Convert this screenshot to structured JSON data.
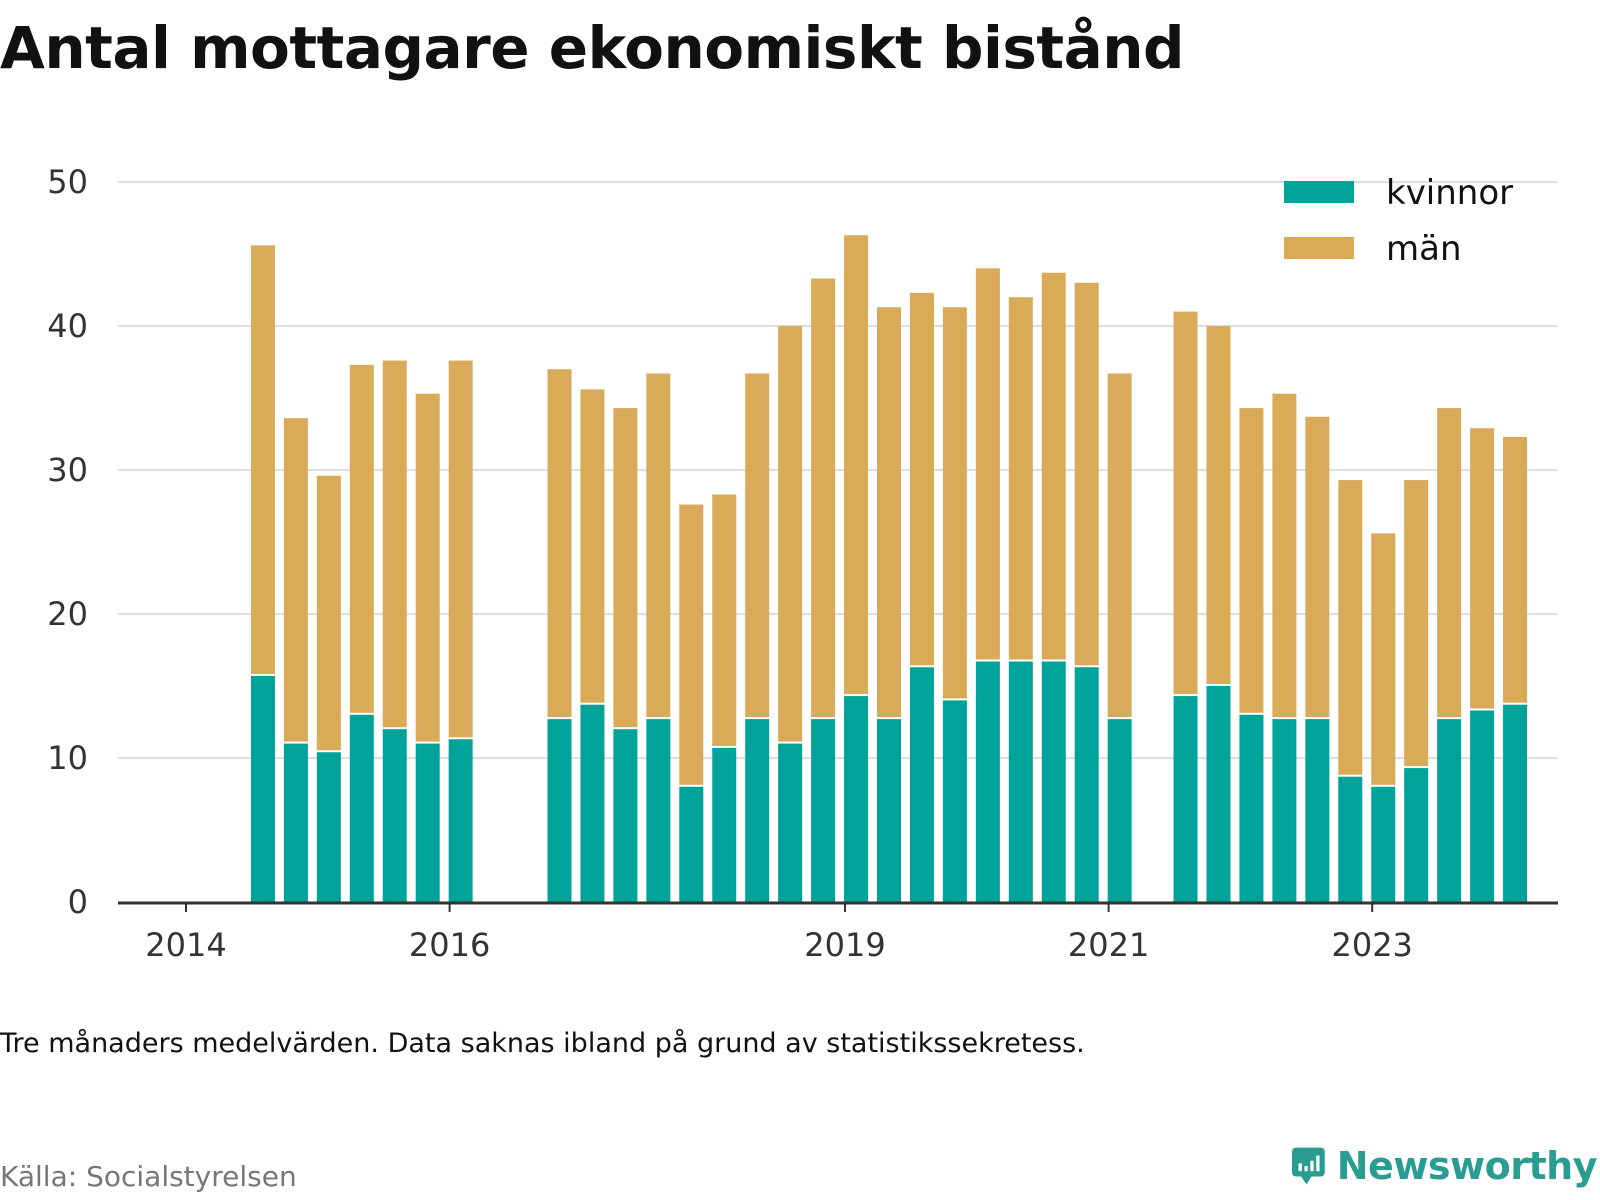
{
  "title": "Antal mottagare ekonomiskt bistånd",
  "note": "Tre månaders medelvärden. Data saknas ibland på grund av statistikssekretess.",
  "source": "Källa: Socialstyrelsen",
  "brand": {
    "name": "Newsworthy",
    "icon": "newsworthy-logo-icon",
    "color": "#2a9d93"
  },
  "chart_data": {
    "type": "bar",
    "stacked": true,
    "x_type": "quarter",
    "x": [
      "2014-Q2",
      "2014-Q3",
      "2014-Q4",
      "2015-Q1",
      "2015-Q2",
      "2015-Q3",
      "2015-Q4",
      "2016-Q3",
      "2016-Q4",
      "2017-Q1",
      "2017-Q2",
      "2017-Q3",
      "2017-Q4",
      "2018-Q1",
      "2018-Q2",
      "2018-Q3",
      "2018-Q4",
      "2019-Q1",
      "2019-Q2",
      "2019-Q3",
      "2019-Q4",
      "2020-Q1",
      "2020-Q2",
      "2020-Q3",
      "2020-Q4",
      "2021-Q2",
      "2021-Q3",
      "2021-Q4",
      "2022-Q1",
      "2022-Q2",
      "2022-Q3",
      "2022-Q4",
      "2023-Q1",
      "2023-Q2",
      "2023-Q3",
      "2023-Q4"
    ],
    "series": [
      {
        "name": "kvinnor",
        "color": "#00a39a",
        "values": [
          15.7,
          11,
          10.4,
          13,
          12,
          11,
          11.3,
          12.7,
          13.7,
          12,
          12.7,
          8,
          10.7,
          12.7,
          11,
          12.7,
          14.3,
          12.7,
          16.3,
          14,
          16.7,
          16.7,
          16.7,
          16.3,
          12.7,
          14.3,
          15,
          13,
          12.7,
          12.7,
          8.7,
          8,
          9.3,
          12.7,
          13.3,
          13.7
        ]
      },
      {
        "name": "män",
        "color": "#d9aa58",
        "values": [
          29.9,
          22.6,
          19.2,
          24.3,
          25.6,
          24.3,
          26.3,
          24.3,
          21.9,
          22.3,
          24,
          19.6,
          17.6,
          24,
          29,
          30.6,
          32,
          28.6,
          26,
          27.3,
          27.3,
          25.3,
          27,
          26.7,
          24,
          26.7,
          25,
          21.3,
          22.6,
          21,
          20.6,
          17.6,
          20,
          21.6,
          19.6,
          18.6
        ]
      }
    ],
    "ylim": [
      0,
      50
    ],
    "yticks": [
      0,
      10,
      20,
      30,
      40,
      50
    ],
    "xticks": [
      "2014",
      "2016",
      "2019",
      "2021",
      "2023"
    ],
    "legend": {
      "position": "top-right",
      "entries": [
        "kvinnor",
        "män"
      ]
    },
    "grid": true,
    "xlabel": "",
    "ylabel": ""
  }
}
